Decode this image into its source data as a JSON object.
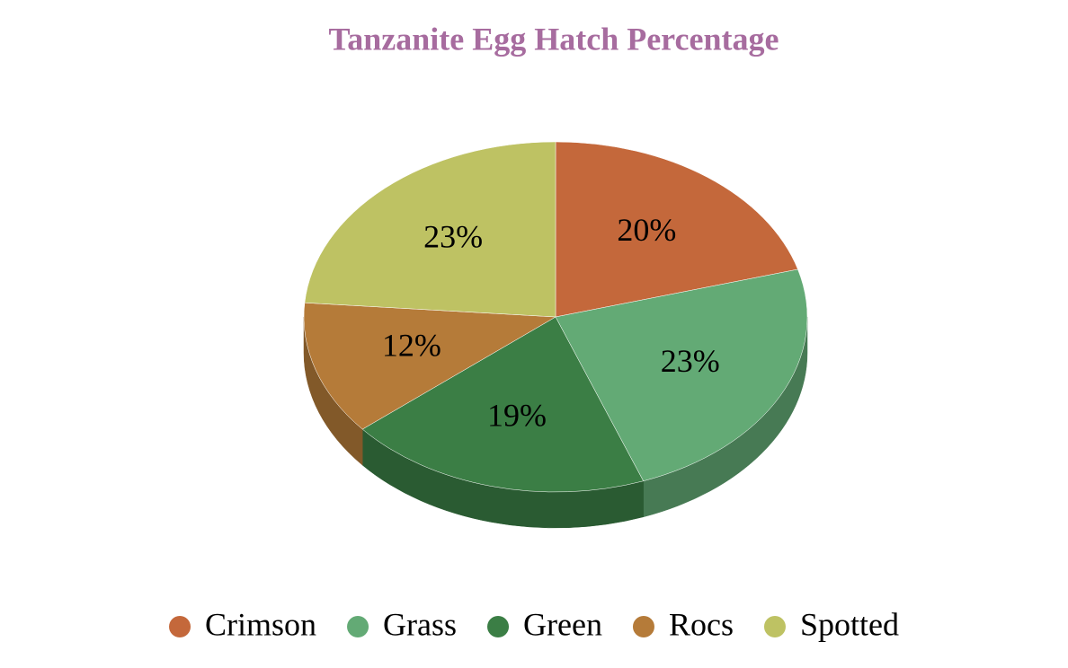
{
  "chart_data": {
    "type": "pie3d",
    "title": "Tanzanite Egg Hatch Percentage",
    "categories": [
      "Crimson",
      "Grass",
      "Green",
      "Rocs",
      "Spotted"
    ],
    "values": [
      20,
      23,
      19,
      12,
      23
    ],
    "value_labels": [
      "20%",
      "23%",
      "19%",
      "12%",
      "23%"
    ],
    "colors": [
      "#c4683b",
      "#63aa75",
      "#3b7e45",
      "#b57b39",
      "#bec263"
    ],
    "title_color": "#a76c9f",
    "legend": "bottom"
  }
}
